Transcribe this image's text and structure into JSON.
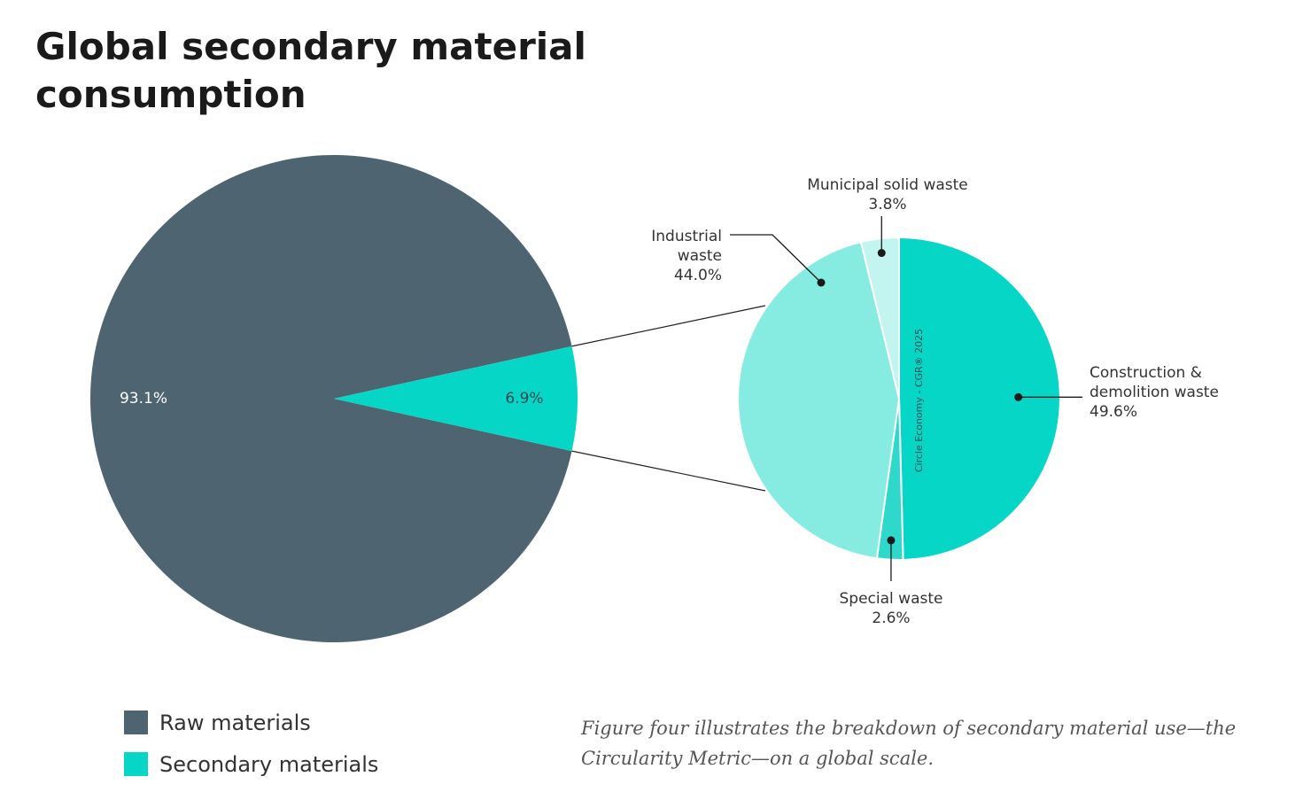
{
  "title": "Global secondary material consumption",
  "caption": "Figure four illustrates the breakdown of secondary material use—the Circularity Metric—on a global scale.",
  "watermark": "Circle Economy - CGR® 2025",
  "colors": {
    "raw": "#4e6470",
    "secondary": "#06d6c6",
    "construction": "#06d6c6",
    "special": "#2ed9cc",
    "industrial": "#86ece2",
    "municipal": "#c3f5f0"
  },
  "legend": [
    {
      "label": "Raw materials",
      "color": "#4e6470"
    },
    {
      "label": "Secondary materials",
      "color": "#06d6c6"
    }
  ],
  "chart_data": [
    {
      "type": "pie",
      "slices": [
        {
          "label": "Raw materials",
          "value": 93.1,
          "value_label": "93.1%"
        },
        {
          "label": "Secondary materials",
          "value": 6.9,
          "value_label": "6.9%"
        }
      ]
    },
    {
      "type": "pie",
      "slices": [
        {
          "label": "Construction & demolition waste",
          "value": 49.6,
          "value_label": "49.6%"
        },
        {
          "label": "Special waste",
          "value": 2.6,
          "value_label": "2.6%"
        },
        {
          "label": "Industrial waste",
          "value": 44.0,
          "value_label": "44.0%"
        },
        {
          "label": "Municipal solid waste",
          "value": 3.8,
          "value_label": "3.8%"
        }
      ]
    }
  ]
}
